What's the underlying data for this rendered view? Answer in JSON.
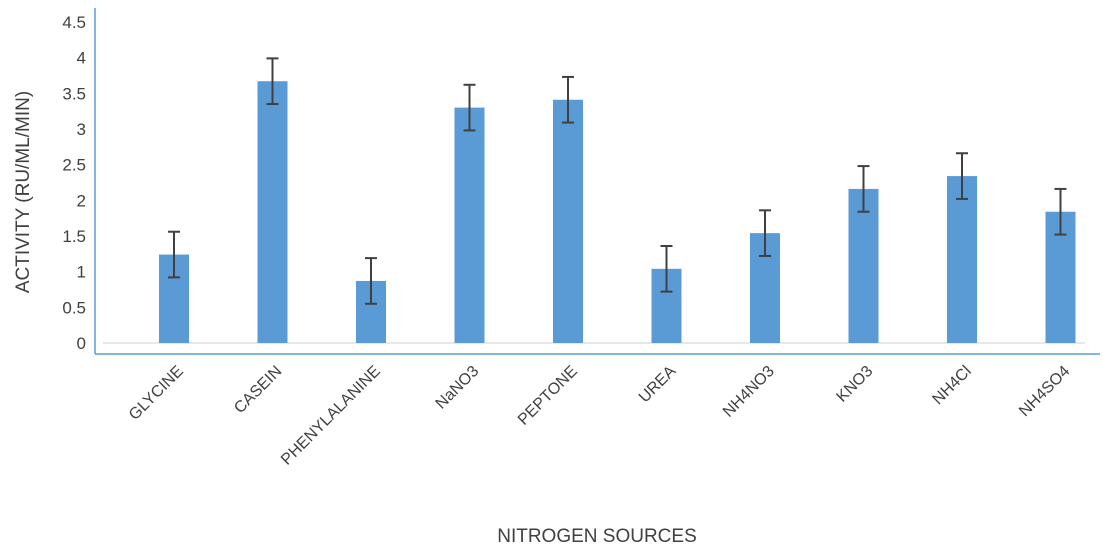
{
  "chart_data": {
    "type": "bar",
    "title": "",
    "xlabel": "NITROGEN SOURCES",
    "ylabel": "ACTIVITY (RU/ML/MIN)",
    "ylim": [
      0,
      4.5
    ],
    "yticks": [
      "0",
      "0.5",
      "1",
      "1.5",
      "2",
      "2.5",
      "3",
      "3.5",
      "4",
      "4.5"
    ],
    "grid": false,
    "legend": "none",
    "categories": [
      "GLYCINE",
      "CASEIN",
      "PHENYLALANINE",
      "NaNO3",
      "PEPTONE",
      "UREA",
      "NH4NO3",
      "KNO3",
      "NH4Cl",
      "NH4SO4"
    ],
    "values": [
      1.24,
      3.67,
      0.87,
      3.3,
      3.41,
      1.04,
      1.54,
      2.16,
      2.34,
      1.84
    ],
    "error": [
      0.32,
      0.32,
      0.32,
      0.32,
      0.32,
      0.32,
      0.32,
      0.32,
      0.32,
      0.32
    ],
    "colors": {
      "bar": "#5b9bd5",
      "error_bar": "#404040",
      "axis": "#5b9bd5",
      "text": "#404040"
    }
  }
}
